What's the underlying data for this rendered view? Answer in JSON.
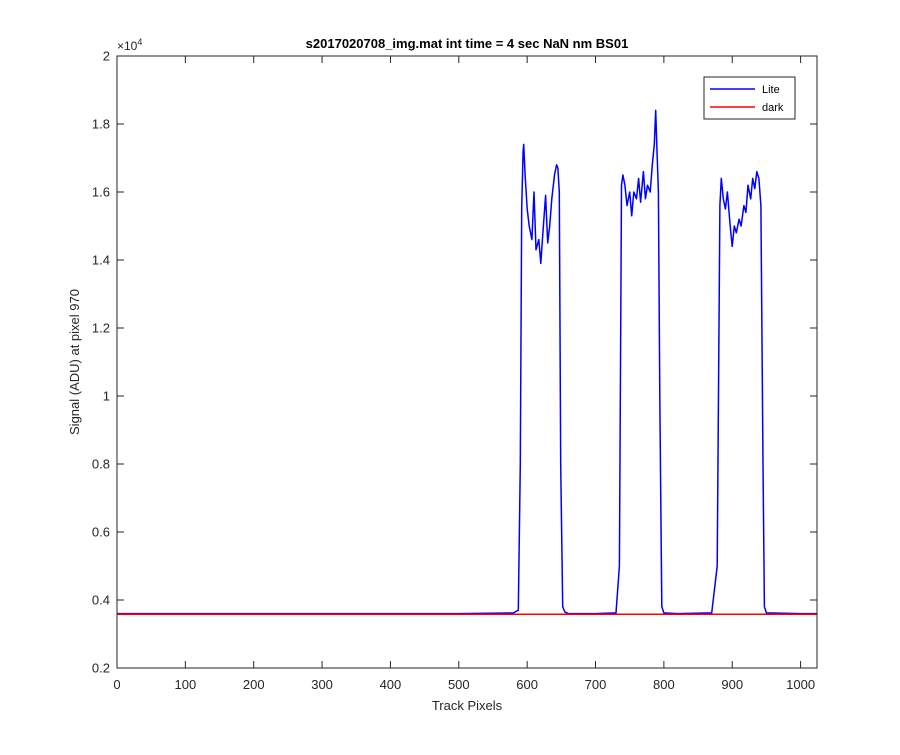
{
  "chart_data": {
    "type": "line",
    "title": "s2017020708_img.mat int time = 4 sec  NaN nm BS01",
    "xlabel": "Track Pixels",
    "ylabel": "Signal (ADU) at pixel 970",
    "y_exponent_label": "×10",
    "y_exponent_power": "4",
    "xlim": [
      0,
      1024
    ],
    "ylim": [
      0.2,
      2
    ],
    "x_ticks": [
      0,
      100,
      200,
      300,
      400,
      500,
      600,
      700,
      800,
      900,
      1000
    ],
    "x_tick_labels": [
      "0",
      "100",
      "200",
      "300",
      "400",
      "500",
      "600",
      "700",
      "800",
      "900",
      "1000"
    ],
    "y_ticks": [
      0.2,
      0.4,
      0.6,
      0.8,
      1.0,
      1.2,
      1.4,
      1.6,
      1.8,
      2.0
    ],
    "y_tick_labels": [
      "0.2",
      "0.4",
      "0.6",
      "0.8",
      "1",
      "1.2",
      "1.4",
      "1.6",
      "1.8",
      "2"
    ],
    "grid": false,
    "legend_position": "top-right",
    "series": [
      {
        "name": "Lite",
        "color": "#0000ff",
        "x": [
          0,
          100,
          200,
          300,
          400,
          500,
          580,
          587,
          590,
          592,
          594,
          595,
          597,
          600,
          603,
          607,
          610,
          613,
          617,
          620,
          623,
          627,
          630,
          633,
          636,
          640,
          643,
          645,
          647,
          649,
          652,
          655,
          660,
          700,
          730,
          735,
          738,
          740,
          743,
          746,
          750,
          753,
          756,
          760,
          763,
          766,
          770,
          773,
          776,
          780,
          783,
          786,
          788,
          790,
          792,
          794,
          797,
          800,
          820,
          870,
          878,
          882,
          884,
          887,
          890,
          893,
          897,
          900,
          903,
          906,
          910,
          913,
          917,
          920,
          923,
          927,
          930,
          933,
          936,
          939,
          942,
          945,
          947,
          950,
          1000,
          1024
        ],
        "y": [
          0.36,
          0.36,
          0.36,
          0.36,
          0.36,
          0.36,
          0.362,
          0.37,
          0.8,
          1.55,
          1.72,
          1.74,
          1.65,
          1.55,
          1.5,
          1.46,
          1.6,
          1.43,
          1.46,
          1.39,
          1.48,
          1.59,
          1.45,
          1.5,
          1.58,
          1.65,
          1.68,
          1.67,
          1.6,
          0.8,
          0.38,
          0.365,
          0.36,
          0.36,
          0.362,
          0.5,
          1.62,
          1.65,
          1.62,
          1.56,
          1.6,
          1.53,
          1.6,
          1.58,
          1.64,
          1.57,
          1.66,
          1.58,
          1.62,
          1.6,
          1.68,
          1.74,
          1.84,
          1.72,
          1.6,
          1.0,
          0.38,
          0.362,
          0.36,
          0.362,
          0.5,
          1.56,
          1.64,
          1.58,
          1.55,
          1.6,
          1.5,
          1.44,
          1.5,
          1.48,
          1.52,
          1.5,
          1.56,
          1.54,
          1.62,
          1.58,
          1.64,
          1.61,
          1.66,
          1.64,
          1.56,
          0.8,
          0.38,
          0.362,
          0.36,
          0.36
        ]
      },
      {
        "name": "dark",
        "color": "#ff0000",
        "x": [
          0,
          1024
        ],
        "y": [
          0.358,
          0.358
        ]
      }
    ]
  }
}
